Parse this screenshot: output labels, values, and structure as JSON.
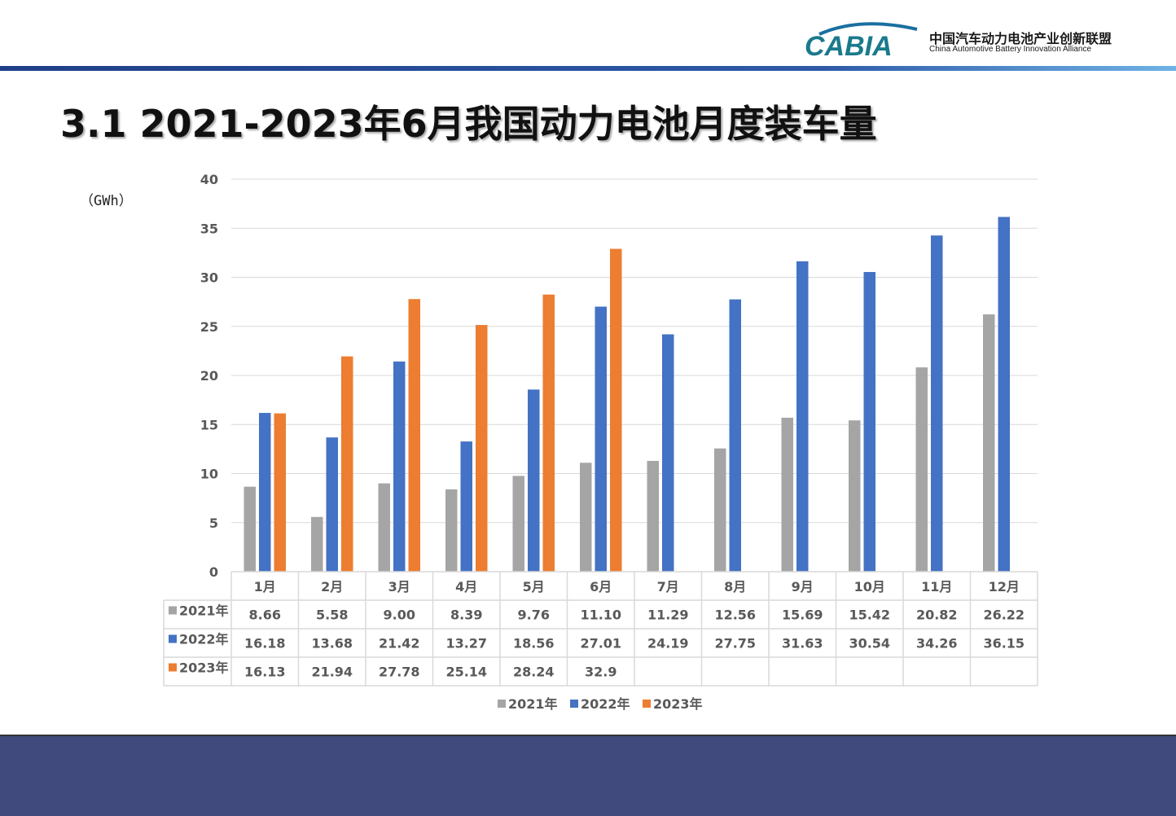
{
  "header": {
    "logo_text": "CABIA",
    "org_name_cn": "中国汽车动力电池产业创新联盟",
    "org_name_en": "China Automotive Battery Innovation Alliance"
  },
  "slide": {
    "title": "3.1 2021-2023年6月我国动力电池月度装车量",
    "unit": "（GWh）"
  },
  "chart_data": {
    "type": "bar",
    "categories": [
      "1月",
      "2月",
      "3月",
      "4月",
      "5月",
      "6月",
      "7月",
      "8月",
      "9月",
      "10月",
      "11月",
      "12月"
    ],
    "series": [
      {
        "name": "2021年",
        "color": "#a5a5a5",
        "values": [
          8.66,
          5.58,
          9.0,
          8.39,
          9.76,
          11.1,
          11.29,
          12.56,
          15.69,
          15.42,
          20.82,
          26.22
        ],
        "labels": [
          "8.66",
          "5.58",
          "9.00",
          "8.39",
          "9.76",
          "11.10",
          "11.29",
          "12.56",
          "15.69",
          "15.42",
          "20.82",
          "26.22"
        ]
      },
      {
        "name": "2022年",
        "color": "#4472c4",
        "values": [
          16.18,
          13.68,
          21.42,
          13.27,
          18.56,
          27.01,
          24.19,
          27.75,
          31.63,
          30.54,
          34.26,
          36.15
        ],
        "labels": [
          "16.18",
          "13.68",
          "21.42",
          "13.27",
          "18.56",
          "27.01",
          "24.19",
          "27.75",
          "31.63",
          "30.54",
          "34.26",
          "36.15"
        ]
      },
      {
        "name": "2023年",
        "color": "#ed7d31",
        "values": [
          16.13,
          21.94,
          27.78,
          25.14,
          28.24,
          32.9,
          null,
          null,
          null,
          null,
          null,
          null
        ],
        "labels": [
          "16.13",
          "21.94",
          "27.78",
          "25.14",
          "28.24",
          "32.9",
          "",
          "",
          "",
          "",
          "",
          ""
        ]
      }
    ],
    "ylim": [
      0,
      40
    ],
    "yticks": [
      0,
      5,
      10,
      15,
      20,
      25,
      30,
      35,
      40
    ],
    "ylabel": "（GWh）",
    "grid": true,
    "legend_position": "bottom",
    "data_table": true
  }
}
